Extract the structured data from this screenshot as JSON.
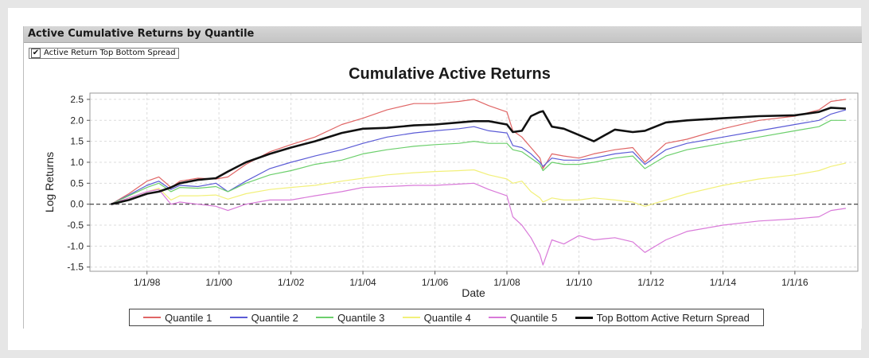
{
  "panel": {
    "title": "Active Cumulative Returns by Quantile",
    "toggle_label": "Active Return Top Bottom Spread",
    "toggle_checked": true,
    "check_glyph": "✔"
  },
  "chart_data": {
    "type": "line",
    "title": "Cumulative Active Returns",
    "xlabel": "Date",
    "ylabel": "Log Returns",
    "x_range": [
      "1996-06-01",
      "2017-10-01"
    ],
    "ylim": [
      -1.6,
      2.65
    ],
    "x_ticks": [
      {
        "date": "1998-01-01",
        "label": "1/1/98"
      },
      {
        "date": "2000-01-01",
        "label": "1/1/00"
      },
      {
        "date": "2002-01-01",
        "label": "1/1/02"
      },
      {
        "date": "2004-01-01",
        "label": "1/1/04"
      },
      {
        "date": "2006-01-01",
        "label": "1/1/06"
      },
      {
        "date": "2008-01-01",
        "label": "1/1/08"
      },
      {
        "date": "2010-01-01",
        "label": "1/1/10"
      },
      {
        "date": "2012-01-01",
        "label": "1/1/12"
      },
      {
        "date": "2014-01-01",
        "label": "1/1/14"
      },
      {
        "date": "2016-01-01",
        "label": "1/1/16"
      }
    ],
    "y_ticks": [
      {
        "value": 2.5,
        "label": "2.5"
      },
      {
        "value": 2.0,
        "label": "2.0"
      },
      {
        "value": 1.5,
        "label": "1.5"
      },
      {
        "value": 1.0,
        "label": "1.0"
      },
      {
        "value": 0.5,
        "label": "0.5"
      },
      {
        "value": 0.0,
        "label": "0.0"
      },
      {
        "value": -0.5,
        "label": "-0.5"
      },
      {
        "value": -1.0,
        "label": "-1.0"
      },
      {
        "value": -1.5,
        "label": "-1.5"
      }
    ],
    "zero_line": "dashed",
    "grid": true,
    "legend_position": "bottom",
    "series": [
      {
        "name": "Quantile 1",
        "color": "#e06666",
        "width": 1.2,
        "points": [
          [
            "1997-01-01",
            0.0
          ],
          [
            "1997-07-01",
            0.25
          ],
          [
            "1998-01-01",
            0.55
          ],
          [
            "1998-05-01",
            0.65
          ],
          [
            "1998-09-01",
            0.4
          ],
          [
            "1998-12-01",
            0.55
          ],
          [
            "1999-06-01",
            0.62
          ],
          [
            "1999-12-01",
            0.6
          ],
          [
            "2000-04-01",
            0.65
          ],
          [
            "2000-10-01",
            0.95
          ],
          [
            "2001-06-01",
            1.25
          ],
          [
            "2002-01-01",
            1.42
          ],
          [
            "2002-09-01",
            1.6
          ],
          [
            "2003-06-01",
            1.9
          ],
          [
            "2004-01-01",
            2.05
          ],
          [
            "2004-09-01",
            2.25
          ],
          [
            "2005-06-01",
            2.4
          ],
          [
            "2006-01-01",
            2.4
          ],
          [
            "2006-09-01",
            2.45
          ],
          [
            "2007-02-01",
            2.5
          ],
          [
            "2007-07-01",
            2.35
          ],
          [
            "2008-01-01",
            2.2
          ],
          [
            "2008-03-01",
            1.75
          ],
          [
            "2008-06-01",
            1.6
          ],
          [
            "2008-09-01",
            1.35
          ],
          [
            "2008-12-01",
            1.1
          ],
          [
            "2009-01-01",
            0.85
          ],
          [
            "2009-04-01",
            1.2
          ],
          [
            "2009-08-01",
            1.15
          ],
          [
            "2010-01-01",
            1.1
          ],
          [
            "2010-06-01",
            1.2
          ],
          [
            "2011-01-01",
            1.3
          ],
          [
            "2011-07-01",
            1.35
          ],
          [
            "2011-11-01",
            1.0
          ],
          [
            "2012-06-01",
            1.45
          ],
          [
            "2013-01-01",
            1.55
          ],
          [
            "2014-01-01",
            1.8
          ],
          [
            "2015-01-01",
            2.0
          ],
          [
            "2016-01-01",
            2.1
          ],
          [
            "2016-09-01",
            2.25
          ],
          [
            "2017-01-01",
            2.45
          ],
          [
            "2017-06-01",
            2.5
          ]
        ]
      },
      {
        "name": "Quantile 2",
        "color": "#5b5bd6",
        "width": 1.2,
        "points": [
          [
            "1997-01-01",
            0.0
          ],
          [
            "1997-07-01",
            0.22
          ],
          [
            "1998-01-01",
            0.45
          ],
          [
            "1998-05-01",
            0.55
          ],
          [
            "1998-09-01",
            0.35
          ],
          [
            "1998-12-01",
            0.45
          ],
          [
            "1999-06-01",
            0.42
          ],
          [
            "1999-12-01",
            0.5
          ],
          [
            "2000-04-01",
            0.3
          ],
          [
            "2000-10-01",
            0.55
          ],
          [
            "2001-06-01",
            0.85
          ],
          [
            "2002-01-01",
            1.0
          ],
          [
            "2002-09-01",
            1.15
          ],
          [
            "2003-06-01",
            1.3
          ],
          [
            "2004-01-01",
            1.45
          ],
          [
            "2004-09-01",
            1.6
          ],
          [
            "2005-06-01",
            1.7
          ],
          [
            "2006-01-01",
            1.75
          ],
          [
            "2006-09-01",
            1.8
          ],
          [
            "2007-02-01",
            1.85
          ],
          [
            "2007-07-01",
            1.75
          ],
          [
            "2008-01-01",
            1.7
          ],
          [
            "2008-03-01",
            1.4
          ],
          [
            "2008-06-01",
            1.35
          ],
          [
            "2008-09-01",
            1.2
          ],
          [
            "2008-12-01",
            1.0
          ],
          [
            "2009-01-01",
            0.9
          ],
          [
            "2009-04-01",
            1.1
          ],
          [
            "2009-08-01",
            1.05
          ],
          [
            "2010-01-01",
            1.05
          ],
          [
            "2010-06-01",
            1.1
          ],
          [
            "2011-01-01",
            1.2
          ],
          [
            "2011-07-01",
            1.25
          ],
          [
            "2011-11-01",
            0.95
          ],
          [
            "2012-06-01",
            1.3
          ],
          [
            "2013-01-01",
            1.45
          ],
          [
            "2014-01-01",
            1.6
          ],
          [
            "2015-01-01",
            1.75
          ],
          [
            "2016-01-01",
            1.9
          ],
          [
            "2016-09-01",
            2.0
          ],
          [
            "2017-01-01",
            2.15
          ],
          [
            "2017-06-01",
            2.25
          ]
        ]
      },
      {
        "name": "Quantile 3",
        "color": "#6ccf6c",
        "width": 1.2,
        "points": [
          [
            "1997-01-01",
            0.0
          ],
          [
            "1997-07-01",
            0.2
          ],
          [
            "1998-01-01",
            0.4
          ],
          [
            "1998-05-01",
            0.5
          ],
          [
            "1998-09-01",
            0.3
          ],
          [
            "1998-12-01",
            0.4
          ],
          [
            "1999-06-01",
            0.38
          ],
          [
            "1999-12-01",
            0.42
          ],
          [
            "2000-04-01",
            0.3
          ],
          [
            "2000-10-01",
            0.5
          ],
          [
            "2001-06-01",
            0.7
          ],
          [
            "2002-01-01",
            0.8
          ],
          [
            "2002-09-01",
            0.95
          ],
          [
            "2003-06-01",
            1.05
          ],
          [
            "2004-01-01",
            1.2
          ],
          [
            "2004-09-01",
            1.3
          ],
          [
            "2005-06-01",
            1.38
          ],
          [
            "2006-01-01",
            1.42
          ],
          [
            "2006-09-01",
            1.45
          ],
          [
            "2007-02-01",
            1.5
          ],
          [
            "2007-07-01",
            1.45
          ],
          [
            "2008-01-01",
            1.45
          ],
          [
            "2008-03-01",
            1.3
          ],
          [
            "2008-06-01",
            1.25
          ],
          [
            "2008-09-01",
            1.1
          ],
          [
            "2008-12-01",
            0.95
          ],
          [
            "2009-01-01",
            0.8
          ],
          [
            "2009-04-01",
            1.0
          ],
          [
            "2009-08-01",
            0.95
          ],
          [
            "2010-01-01",
            0.95
          ],
          [
            "2010-06-01",
            1.0
          ],
          [
            "2011-01-01",
            1.1
          ],
          [
            "2011-07-01",
            1.15
          ],
          [
            "2011-11-01",
            0.85
          ],
          [
            "2012-06-01",
            1.15
          ],
          [
            "2013-01-01",
            1.3
          ],
          [
            "2014-01-01",
            1.45
          ],
          [
            "2015-01-01",
            1.6
          ],
          [
            "2016-01-01",
            1.75
          ],
          [
            "2016-09-01",
            1.85
          ],
          [
            "2017-01-01",
            2.0
          ],
          [
            "2017-06-01",
            2.0
          ]
        ]
      },
      {
        "name": "Quantile 4",
        "color": "#f2f07a",
        "width": 1.2,
        "points": [
          [
            "1997-01-01",
            0.0
          ],
          [
            "1997-07-01",
            0.15
          ],
          [
            "1998-01-01",
            0.3
          ],
          [
            "1998-05-01",
            0.38
          ],
          [
            "1998-09-01",
            0.1
          ],
          [
            "1998-12-01",
            0.2
          ],
          [
            "1999-06-01",
            0.2
          ],
          [
            "1999-12-01",
            0.22
          ],
          [
            "2000-04-01",
            0.12
          ],
          [
            "2000-10-01",
            0.25
          ],
          [
            "2001-06-01",
            0.35
          ],
          [
            "2002-01-01",
            0.4
          ],
          [
            "2002-09-01",
            0.45
          ],
          [
            "2003-06-01",
            0.55
          ],
          [
            "2004-01-01",
            0.62
          ],
          [
            "2004-09-01",
            0.7
          ],
          [
            "2005-06-01",
            0.75
          ],
          [
            "2006-01-01",
            0.78
          ],
          [
            "2006-09-01",
            0.8
          ],
          [
            "2007-02-01",
            0.82
          ],
          [
            "2007-07-01",
            0.7
          ],
          [
            "2008-01-01",
            0.6
          ],
          [
            "2008-03-01",
            0.5
          ],
          [
            "2008-06-01",
            0.55
          ],
          [
            "2008-09-01",
            0.3
          ],
          [
            "2008-12-01",
            0.15
          ],
          [
            "2009-01-01",
            0.05
          ],
          [
            "2009-04-01",
            0.15
          ],
          [
            "2009-08-01",
            0.1
          ],
          [
            "2010-01-01",
            0.1
          ],
          [
            "2010-06-01",
            0.15
          ],
          [
            "2011-01-01",
            0.1
          ],
          [
            "2011-07-01",
            0.05
          ],
          [
            "2011-11-01",
            -0.05
          ],
          [
            "2012-06-01",
            0.1
          ],
          [
            "2013-01-01",
            0.25
          ],
          [
            "2014-01-01",
            0.45
          ],
          [
            "2015-01-01",
            0.6
          ],
          [
            "2016-01-01",
            0.7
          ],
          [
            "2016-09-01",
            0.8
          ],
          [
            "2017-01-01",
            0.9
          ],
          [
            "2017-06-01",
            0.98
          ]
        ]
      },
      {
        "name": "Quantile 5",
        "color": "#d97ad9",
        "width": 1.2,
        "points": [
          [
            "1997-01-01",
            0.0
          ],
          [
            "1997-07-01",
            0.15
          ],
          [
            "1998-01-01",
            0.3
          ],
          [
            "1998-05-01",
            0.35
          ],
          [
            "1998-09-01",
            0.0
          ],
          [
            "1998-12-01",
            0.05
          ],
          [
            "1999-06-01",
            0.0
          ],
          [
            "1999-12-01",
            -0.05
          ],
          [
            "2000-04-01",
            -0.15
          ],
          [
            "2000-10-01",
            0.0
          ],
          [
            "2001-06-01",
            0.1
          ],
          [
            "2002-01-01",
            0.1
          ],
          [
            "2002-09-01",
            0.2
          ],
          [
            "2003-06-01",
            0.3
          ],
          [
            "2004-01-01",
            0.4
          ],
          [
            "2004-09-01",
            0.42
          ],
          [
            "2005-06-01",
            0.45
          ],
          [
            "2006-01-01",
            0.45
          ],
          [
            "2006-09-01",
            0.48
          ],
          [
            "2007-02-01",
            0.5
          ],
          [
            "2007-07-01",
            0.35
          ],
          [
            "2008-01-01",
            0.2
          ],
          [
            "2008-03-01",
            -0.3
          ],
          [
            "2008-06-01",
            -0.5
          ],
          [
            "2008-09-01",
            -0.8
          ],
          [
            "2008-12-01",
            -1.2
          ],
          [
            "2009-01-01",
            -1.45
          ],
          [
            "2009-04-01",
            -0.85
          ],
          [
            "2009-08-01",
            -0.95
          ],
          [
            "2010-01-01",
            -0.75
          ],
          [
            "2010-06-01",
            -0.85
          ],
          [
            "2011-01-01",
            -0.8
          ],
          [
            "2011-07-01",
            -0.9
          ],
          [
            "2011-11-01",
            -1.15
          ],
          [
            "2012-06-01",
            -0.85
          ],
          [
            "2013-01-01",
            -0.65
          ],
          [
            "2014-01-01",
            -0.5
          ],
          [
            "2015-01-01",
            -0.4
          ],
          [
            "2016-01-01",
            -0.35
          ],
          [
            "2016-09-01",
            -0.3
          ],
          [
            "2017-01-01",
            -0.15
          ],
          [
            "2017-06-01",
            -0.1
          ]
        ]
      },
      {
        "name": "Top Bottom Active Return Spread",
        "color": "#111111",
        "width": 2.6,
        "points": [
          [
            "1997-01-01",
            0.0
          ],
          [
            "1997-07-01",
            0.1
          ],
          [
            "1998-01-01",
            0.25
          ],
          [
            "1998-05-01",
            0.3
          ],
          [
            "1998-09-01",
            0.4
          ],
          [
            "1998-12-01",
            0.5
          ],
          [
            "1999-06-01",
            0.58
          ],
          [
            "1999-12-01",
            0.62
          ],
          [
            "2000-04-01",
            0.78
          ],
          [
            "2000-10-01",
            1.0
          ],
          [
            "2001-06-01",
            1.2
          ],
          [
            "2002-01-01",
            1.35
          ],
          [
            "2002-09-01",
            1.5
          ],
          [
            "2003-06-01",
            1.7
          ],
          [
            "2004-01-01",
            1.8
          ],
          [
            "2004-09-01",
            1.82
          ],
          [
            "2005-06-01",
            1.88
          ],
          [
            "2006-01-01",
            1.9
          ],
          [
            "2006-09-01",
            1.95
          ],
          [
            "2007-02-01",
            1.98
          ],
          [
            "2007-07-01",
            1.98
          ],
          [
            "2008-01-01",
            1.9
          ],
          [
            "2008-03-01",
            1.72
          ],
          [
            "2008-06-01",
            1.75
          ],
          [
            "2008-09-01",
            2.1
          ],
          [
            "2008-12-01",
            2.2
          ],
          [
            "2009-01-01",
            2.22
          ],
          [
            "2009-04-01",
            1.85
          ],
          [
            "2009-08-01",
            1.8
          ],
          [
            "2010-01-01",
            1.65
          ],
          [
            "2010-06-01",
            1.5
          ],
          [
            "2011-01-01",
            1.78
          ],
          [
            "2011-07-01",
            1.72
          ],
          [
            "2011-11-01",
            1.75
          ],
          [
            "2012-06-01",
            1.95
          ],
          [
            "2013-01-01",
            2.0
          ],
          [
            "2014-01-01",
            2.05
          ],
          [
            "2015-01-01",
            2.1
          ],
          [
            "2016-01-01",
            2.12
          ],
          [
            "2016-09-01",
            2.2
          ],
          [
            "2017-01-01",
            2.3
          ],
          [
            "2017-06-01",
            2.28
          ]
        ]
      }
    ]
  }
}
